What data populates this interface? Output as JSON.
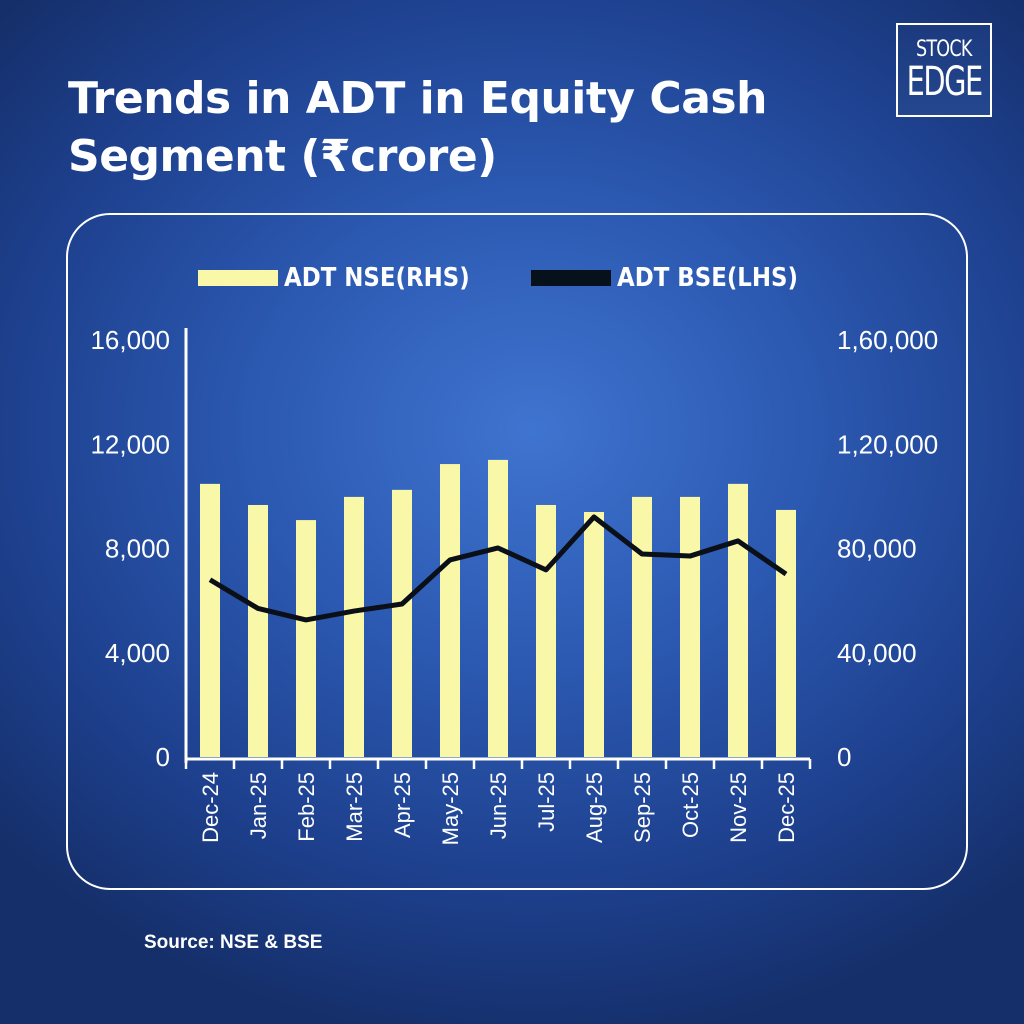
{
  "title": "Trends in ADT in Equity Cash Segment (₹crore)",
  "logo": {
    "line1": "STOCK",
    "line2": "EDGE"
  },
  "legend": [
    {
      "label": "ADT NSE(RHS)",
      "color": "#f9f8a8",
      "type": "bar"
    },
    {
      "label": "ADT BSE(LHS)",
      "color": "#06111c",
      "type": "line"
    }
  ],
  "source": "Source: NSE & BSE",
  "colors": {
    "bar": "#f9f8a8",
    "line": "#0a0f18",
    "axis": "#ffffff"
  },
  "chart_data": {
    "type": "bar+line",
    "title": "Trends in ADT in Equity Cash Segment (₹crore)",
    "categories": [
      "Dec-24",
      "Jan-25",
      "Feb-25",
      "Mar-25",
      "Apr-25",
      "May-25",
      "Jun-25",
      "Jul-25",
      "Aug-25",
      "Sep-25",
      "Oct-25",
      "Nov-25",
      "Dec-25"
    ],
    "series": [
      {
        "name": "ADT NSE(RHS)",
        "type": "bar",
        "axis": "right",
        "values": [
          104800,
          96700,
          90900,
          99800,
          102500,
          112400,
          114000,
          96700,
          94000,
          99800,
          99800,
          104800,
          94800
        ]
      },
      {
        "name": "ADT BSE(LHS)",
        "type": "line",
        "axis": "left",
        "values": [
          6800,
          5700,
          5260,
          5600,
          5870,
          7560,
          8020,
          7180,
          9210,
          7790,
          7710,
          8290,
          7020
        ]
      }
    ],
    "y_left": {
      "ticks": [
        "0",
        "4,000",
        "8,000",
        "12,000",
        "16,000"
      ],
      "ylim": [
        0,
        16000
      ]
    },
    "y_right": {
      "ticks": [
        "0",
        "40,000",
        "80,000",
        "1,20,000",
        "1,60,000"
      ],
      "ylim": [
        0,
        160000
      ]
    },
    "xlabel": "",
    "ylabel": "",
    "legend_position": "top",
    "grid": false
  }
}
